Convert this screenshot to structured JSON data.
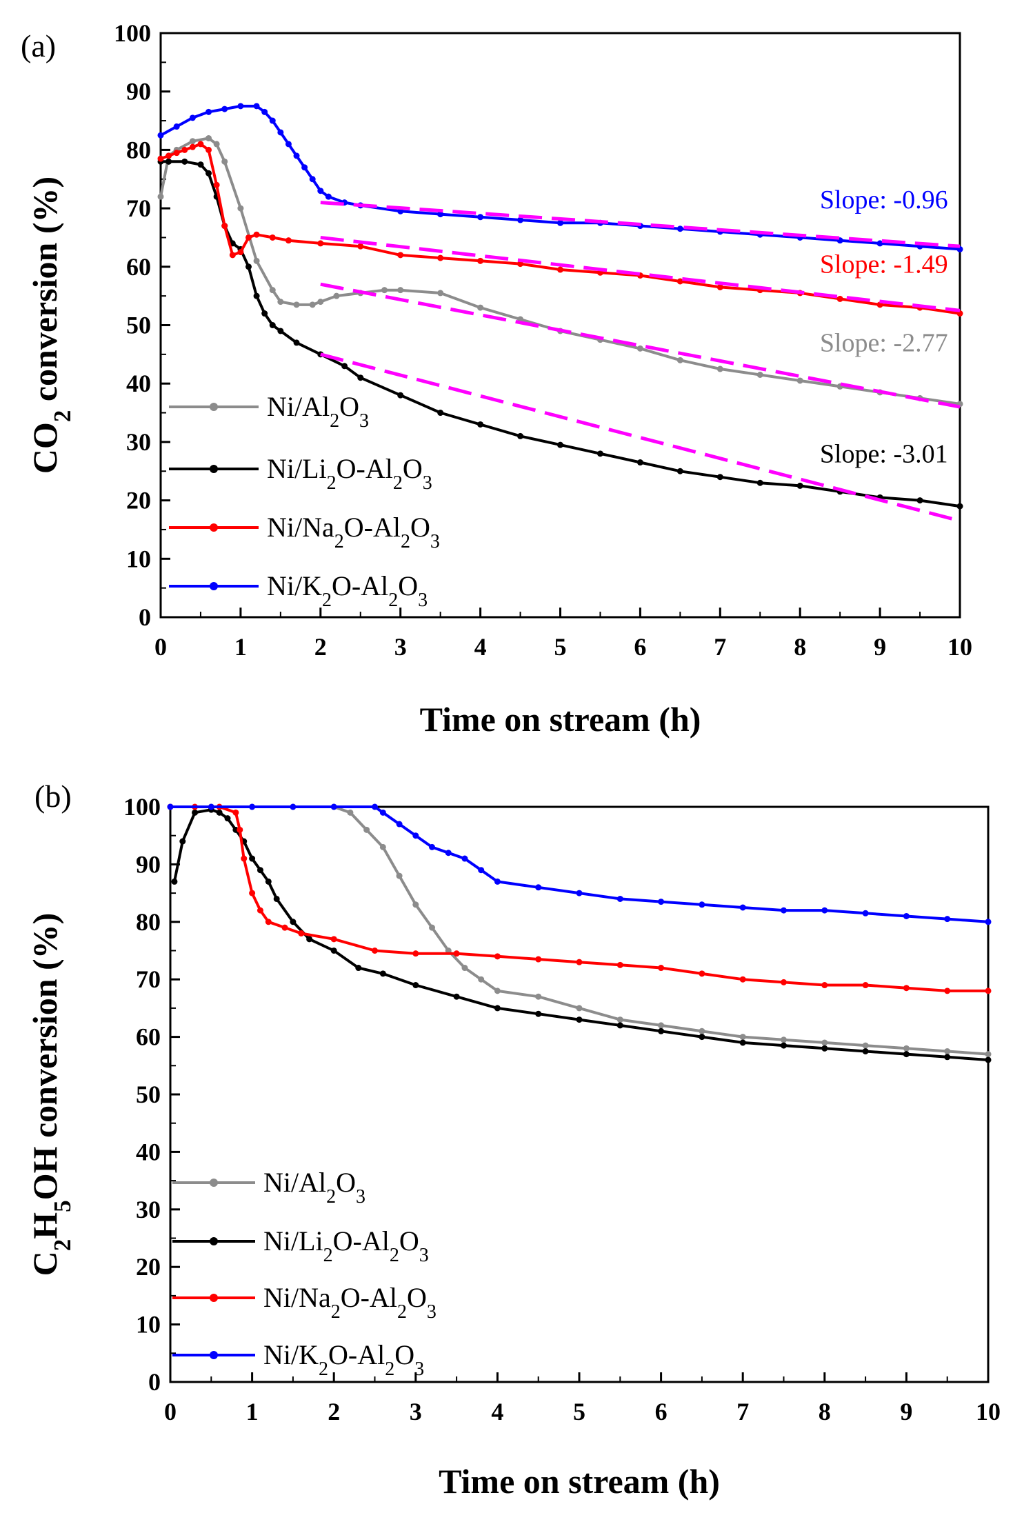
{
  "chart_data": [
    {
      "panel_label": "(a)",
      "type": "line",
      "xlabel": "Time on stream (h)",
      "ylabel_parts": [
        "CO",
        "2",
        " conversion (%)"
      ],
      "xlim": [
        0,
        10
      ],
      "ylim": [
        0,
        100
      ],
      "xticks": [
        "0",
        "1",
        "2",
        "3",
        "4",
        "5",
        "6",
        "7",
        "8",
        "9",
        "10"
      ],
      "yticks": [
        "0",
        "10",
        "20",
        "30",
        "40",
        "50",
        "60",
        "70",
        "80",
        "90",
        "100"
      ],
      "series": [
        {
          "name": "Ni/Al2O3",
          "label_parts": [
            [
              "Ni/Al",
              ""
            ],
            [
              "2",
              "sub"
            ],
            [
              "O",
              ""
            ],
            [
              "3",
              "sub"
            ]
          ],
          "color": "#8c8c8c",
          "x": [
            0,
            0.1,
            0.2,
            0.4,
            0.6,
            0.7,
            0.8,
            1.0,
            1.2,
            1.4,
            1.5,
            1.7,
            1.9,
            2.0,
            2.2,
            2.5,
            2.8,
            3.0,
            3.5,
            4.0,
            4.5,
            5.0,
            5.5,
            6.0,
            6.5,
            7.0,
            7.5,
            8.0,
            8.5,
            9.0,
            9.5,
            10.0
          ],
          "y": [
            72,
            79,
            80,
            81.5,
            82,
            81,
            78,
            70,
            61,
            56,
            54,
            53.5,
            53.5,
            54,
            55,
            55.5,
            56,
            56,
            55.5,
            53,
            51,
            49,
            47.5,
            46,
            44,
            42.5,
            41.5,
            40.5,
            39.5,
            38.5,
            37.5,
            36.5
          ]
        },
        {
          "name": "Ni/Li2O-Al2O3",
          "label_parts": [
            [
              "Ni/Li",
              ""
            ],
            [
              "2",
              "sub"
            ],
            [
              "O-Al",
              ""
            ],
            [
              "2",
              "sub"
            ],
            [
              "O",
              ""
            ],
            [
              "3",
              "sub"
            ]
          ],
          "color": "#000000",
          "x": [
            0,
            0.1,
            0.3,
            0.5,
            0.6,
            0.7,
            0.8,
            0.9,
            1.0,
            1.1,
            1.2,
            1.3,
            1.4,
            1.5,
            1.7,
            2.0,
            2.3,
            2.5,
            3.0,
            3.5,
            4.0,
            4.5,
            5.0,
            5.5,
            6.0,
            6.5,
            7.0,
            7.5,
            8.0,
            8.5,
            9.0,
            9.5,
            10.0
          ],
          "y": [
            78,
            78,
            78,
            77.5,
            76,
            72,
            67,
            64,
            63,
            60,
            55,
            52,
            50,
            49,
            47,
            45,
            43,
            41,
            38,
            35,
            33,
            31,
            29.5,
            28,
            26.5,
            25,
            24,
            23,
            22.5,
            21.5,
            20.5,
            20,
            19
          ]
        },
        {
          "name": "Ni/Na2O-Al2O3",
          "label_parts": [
            [
              "Ni/Na",
              ""
            ],
            [
              "2",
              "sub"
            ],
            [
              "O-Al",
              ""
            ],
            [
              "2",
              "sub"
            ],
            [
              "O",
              ""
            ],
            [
              "3",
              "sub"
            ]
          ],
          "color": "#ff0000",
          "x": [
            0,
            0.1,
            0.2,
            0.3,
            0.4,
            0.5,
            0.6,
            0.7,
            0.8,
            0.9,
            1.0,
            1.1,
            1.2,
            1.4,
            1.6,
            2.0,
            2.5,
            3.0,
            3.5,
            4.0,
            4.5,
            5.0,
            5.5,
            6.0,
            6.5,
            7.0,
            7.5,
            8.0,
            8.5,
            9.0,
            9.5,
            10.0
          ],
          "y": [
            78.5,
            79,
            79.5,
            80,
            80.5,
            81,
            80,
            74,
            67,
            62,
            62.5,
            65,
            65.5,
            65,
            64.5,
            64,
            63.5,
            62,
            61.5,
            61,
            60.5,
            59.5,
            59,
            58.5,
            57.5,
            56.5,
            56,
            55.5,
            54.5,
            53.5,
            53,
            52
          ]
        },
        {
          "name": "Ni/K2O-Al2O3",
          "label_parts": [
            [
              "Ni/K",
              ""
            ],
            [
              "2",
              "sub"
            ],
            [
              "O-Al",
              ""
            ],
            [
              "2",
              "sub"
            ],
            [
              "O",
              ""
            ],
            [
              "3",
              "sub"
            ]
          ],
          "color": "#0000ff",
          "x": [
            0,
            0.2,
            0.4,
            0.6,
            0.8,
            1.0,
            1.2,
            1.3,
            1.4,
            1.5,
            1.6,
            1.7,
            1.8,
            1.9,
            2.0,
            2.1,
            2.3,
            2.5,
            3.0,
            3.5,
            4.0,
            4.5,
            5.0,
            5.5,
            6.0,
            6.5,
            7.0,
            7.5,
            8.0,
            8.5,
            9.0,
            9.5,
            10.0
          ],
          "y": [
            82.5,
            84,
            85.5,
            86.5,
            87,
            87.5,
            87.5,
            86.5,
            85,
            83,
            81,
            79,
            77,
            75,
            73,
            72,
            71,
            70.5,
            69.5,
            69,
            68.5,
            68,
            67.5,
            67.5,
            67,
            66.5,
            66,
            65.5,
            65,
            64.5,
            64,
            63.5,
            63
          ]
        }
      ],
      "fits": [
        {
          "color": "#ff00ff",
          "x": [
            2,
            10
          ],
          "y": [
            71,
            63.5
          ]
        },
        {
          "color": "#ff00ff",
          "x": [
            2,
            10
          ],
          "y": [
            65,
            52.5
          ]
        },
        {
          "color": "#ff00ff",
          "x": [
            2,
            10
          ],
          "y": [
            57,
            36
          ]
        },
        {
          "color": "#ff00ff",
          "x": [
            2,
            10
          ],
          "y": [
            45,
            16.5
          ]
        }
      ],
      "annotations": [
        {
          "text": "Slope: -0.96",
          "color": "#0000ff",
          "x": 9.85,
          "y": 70
        },
        {
          "text": "Slope: -1.49",
          "color": "#ff0000",
          "x": 9.85,
          "y": 59
        },
        {
          "text": "Slope: -2.77",
          "color": "#8c8c8c",
          "x": 9.85,
          "y": 45.5
        },
        {
          "text": "Slope: -3.01",
          "color": "#000000",
          "x": 9.85,
          "y": 26.5
        }
      ],
      "legend_position": "bottom-left"
    },
    {
      "panel_label": "(b)",
      "type": "line",
      "xlabel": "Time on stream (h)",
      "ylabel_parts": [
        "C",
        "2",
        "H",
        "5",
        "OH conversion (%)"
      ],
      "xlim": [
        0,
        10
      ],
      "ylim": [
        0,
        100
      ],
      "xticks": [
        "0",
        "1",
        "2",
        "3",
        "4",
        "5",
        "6",
        "7",
        "8",
        "9",
        "10"
      ],
      "yticks": [
        "0",
        "10",
        "20",
        "30",
        "40",
        "50",
        "60",
        "70",
        "80",
        "90",
        "100"
      ],
      "series": [
        {
          "name": "Ni/Al2O3",
          "label_parts": [
            [
              "Ni/Al",
              ""
            ],
            [
              "2",
              "sub"
            ],
            [
              "O",
              ""
            ],
            [
              "3",
              "sub"
            ]
          ],
          "color": "#8c8c8c",
          "x": [
            0,
            0.5,
            1.0,
            1.5,
            2.0,
            2.2,
            2.4,
            2.6,
            2.8,
            3.0,
            3.2,
            3.4,
            3.6,
            3.8,
            4.0,
            4.5,
            5.0,
            5.5,
            6.0,
            6.5,
            7.0,
            7.5,
            8.0,
            8.5,
            9.0,
            9.5,
            10.0
          ],
          "y": [
            100,
            100,
            100,
            100,
            100,
            99,
            96,
            93,
            88,
            83,
            79,
            75,
            72,
            70,
            68,
            67,
            65,
            63,
            62,
            61,
            60,
            59.5,
            59,
            58.5,
            58,
            57.5,
            57
          ]
        },
        {
          "name": "Ni/Li2O-Al2O3",
          "label_parts": [
            [
              "Ni/Li",
              ""
            ],
            [
              "2",
              "sub"
            ],
            [
              "O-Al",
              ""
            ],
            [
              "2",
              "sub"
            ],
            [
              "O",
              ""
            ],
            [
              "3",
              "sub"
            ]
          ],
          "color": "#000000",
          "x": [
            0.05,
            0.15,
            0.3,
            0.5,
            0.6,
            0.7,
            0.8,
            0.9,
            1.0,
            1.1,
            1.2,
            1.3,
            1.5,
            1.7,
            2.0,
            2.3,
            2.6,
            3.0,
            3.5,
            4.0,
            4.5,
            5.0,
            5.5,
            6.0,
            6.5,
            7.0,
            7.5,
            8.0,
            8.5,
            9.0,
            9.5,
            10.0
          ],
          "y": [
            87,
            94,
            99,
            99.5,
            99,
            98,
            96,
            94,
            91,
            89,
            87,
            84,
            80,
            77,
            75,
            72,
            71,
            69,
            67,
            65,
            64,
            63,
            62,
            61,
            60,
            59,
            58.5,
            58,
            57.5,
            57,
            56.5,
            56
          ]
        },
        {
          "name": "Ni/Na2O-Al2O3",
          "label_parts": [
            [
              "Ni/Na",
              ""
            ],
            [
              "2",
              "sub"
            ],
            [
              "O-Al",
              ""
            ],
            [
              "2",
              "sub"
            ],
            [
              "O",
              ""
            ],
            [
              "3",
              "sub"
            ]
          ],
          "color": "#ff0000",
          "x": [
            0,
            0.3,
            0.6,
            0.8,
            0.85,
            0.9,
            1.0,
            1.1,
            1.2,
            1.4,
            1.6,
            2.0,
            2.5,
            3.0,
            3.5,
            4.0,
            4.5,
            5.0,
            5.5,
            6.0,
            6.5,
            7.0,
            7.5,
            8.0,
            8.5,
            9.0,
            9.5,
            10.0
          ],
          "y": [
            100,
            100,
            100,
            99,
            96,
            91,
            85,
            82,
            80,
            79,
            78,
            77,
            75,
            74.5,
            74.5,
            74,
            73.5,
            73,
            72.5,
            72,
            71,
            70,
            69.5,
            69,
            69,
            68.5,
            68,
            68
          ]
        },
        {
          "name": "Ni/K2O-Al2O3",
          "label_parts": [
            [
              "Ni/K",
              ""
            ],
            [
              "2",
              "sub"
            ],
            [
              "O-Al",
              ""
            ],
            [
              "2",
              "sub"
            ],
            [
              "O",
              ""
            ],
            [
              "3",
              "sub"
            ]
          ],
          "color": "#0000ff",
          "x": [
            0,
            0.5,
            1.0,
            1.5,
            2.0,
            2.5,
            2.6,
            2.8,
            3.0,
            3.2,
            3.4,
            3.6,
            3.8,
            4.0,
            4.5,
            5.0,
            5.5,
            6.0,
            6.5,
            7.0,
            7.5,
            8.0,
            8.5,
            9.0,
            9.5,
            10.0
          ],
          "y": [
            100,
            100,
            100,
            100,
            100,
            100,
            99,
            97,
            95,
            93,
            92,
            91,
            89,
            87,
            86,
            85,
            84,
            83.5,
            83,
            82.5,
            82,
            82,
            81.5,
            81,
            80.5,
            80
          ]
        }
      ],
      "fits": [],
      "annotations": [],
      "legend_position": "bottom-left"
    }
  ]
}
